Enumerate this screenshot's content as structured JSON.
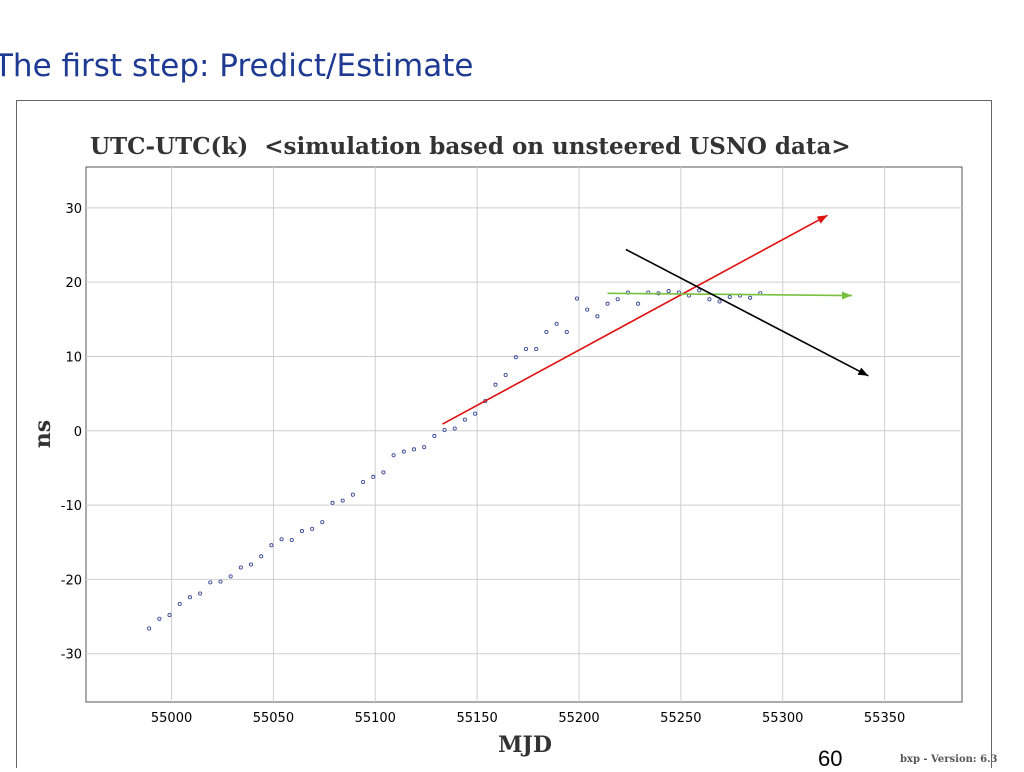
{
  "slide": {
    "title": "The first step: Predict/Estimate",
    "page_number": "60"
  },
  "chart_data": {
    "type": "scatter",
    "title": "UTC-UTC(k)  <simulation based on unsteered USNO data>",
    "xlabel": "MJD",
    "ylabel": "ns",
    "xlim": [
      54958,
      55388
    ],
    "ylim": [
      -36.5,
      35.5
    ],
    "xticks": [
      55000,
      55050,
      55100,
      55150,
      55200,
      55250,
      55300,
      55350
    ],
    "yticks": [
      30,
      20,
      10,
      0,
      -10,
      -20,
      -30
    ],
    "grid": true,
    "footer_note": "bxp - Version: 6.3",
    "series": [
      {
        "marker": "open-circle",
        "color": "#3a4a9a",
        "points": [
          [
            54989,
            -26.6
          ],
          [
            54994,
            -25.3
          ],
          [
            54999,
            -24.8
          ],
          [
            55004,
            -23.3
          ],
          [
            55009,
            -22.4
          ],
          [
            55014,
            -21.9
          ],
          [
            55019,
            -20.4
          ],
          [
            55024,
            -20.3
          ],
          [
            55029,
            -19.6
          ],
          [
            55034,
            -18.4
          ],
          [
            55039,
            -18.0
          ],
          [
            55044,
            -16.9
          ],
          [
            55049,
            -15.4
          ],
          [
            55054,
            -14.6
          ],
          [
            55059,
            -14.7
          ],
          [
            55064,
            -13.5
          ],
          [
            55069,
            -13.2
          ],
          [
            55074,
            -12.3
          ],
          [
            55079,
            -9.7
          ],
          [
            55084,
            -9.4
          ],
          [
            55089,
            -8.6
          ],
          [
            55094,
            -6.9
          ],
          [
            55099,
            -6.2
          ],
          [
            55104,
            -5.6
          ],
          [
            55109,
            -3.3
          ],
          [
            55114,
            -2.8
          ],
          [
            55119,
            -2.5
          ],
          [
            55124,
            -2.2
          ],
          [
            55129,
            -0.7
          ],
          [
            55134,
            0.1
          ],
          [
            55139,
            0.3
          ],
          [
            55144,
            1.5
          ],
          [
            55149,
            2.3
          ],
          [
            55154,
            4.0
          ],
          [
            55159,
            6.2
          ],
          [
            55164,
            7.5
          ],
          [
            55169,
            9.9
          ],
          [
            55174,
            11.0
          ],
          [
            55179,
            11.0
          ],
          [
            55184,
            13.3
          ],
          [
            55189,
            14.4
          ],
          [
            55194,
            13.3
          ],
          [
            55199,
            17.8
          ],
          [
            55204,
            16.3
          ],
          [
            55209,
            15.4
          ],
          [
            55214,
            17.1
          ],
          [
            55219,
            17.7
          ],
          [
            55224,
            18.6
          ],
          [
            55229,
            17.1
          ],
          [
            55234,
            18.6
          ],
          [
            55239,
            18.5
          ],
          [
            55244,
            18.8
          ],
          [
            55249,
            18.6
          ],
          [
            55254,
            18.2
          ],
          [
            55259,
            18.9
          ],
          [
            55264,
            17.7
          ],
          [
            55269,
            17.4
          ],
          [
            55274,
            18.0
          ],
          [
            55279,
            18.2
          ],
          [
            55284,
            17.9
          ],
          [
            55289,
            18.5
          ]
        ]
      }
    ],
    "annotations": [
      {
        "kind": "arrow",
        "color": "#e01010",
        "from": [
          55133,
          0.9
        ],
        "to": [
          55322,
          29.0
        ]
      },
      {
        "kind": "arrow",
        "color": "#78c040",
        "from": [
          55214,
          18.5
        ],
        "to": [
          55334,
          18.2
        ]
      },
      {
        "kind": "arrow",
        "color": "#000000",
        "from": [
          55223,
          24.4
        ],
        "to": [
          55342,
          7.4
        ]
      }
    ]
  }
}
